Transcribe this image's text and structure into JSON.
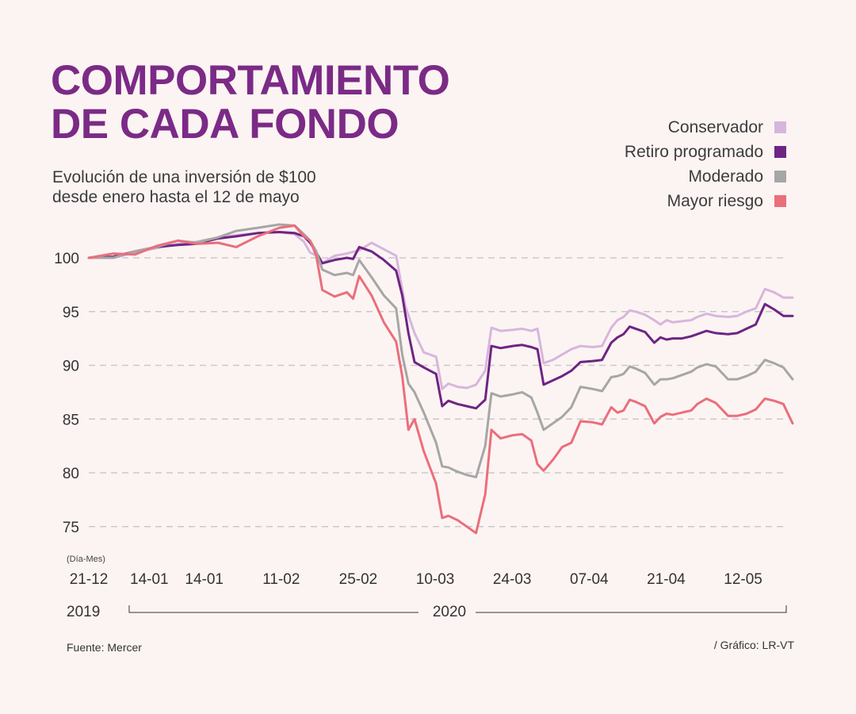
{
  "title": {
    "line1": "COMPORTAMIENTO",
    "line2": "DE CADA FONDO"
  },
  "subtitle": {
    "line1": "Evolución de una inversión de $100",
    "line2": "desde enero hasta el 12 de mayo"
  },
  "legend": [
    {
      "name": "Conservador",
      "color": "#d7b6dd"
    },
    {
      "name": "Retiro programado",
      "color": "#6f2483"
    },
    {
      "name": "Moderado",
      "color": "#a6a6a6"
    },
    {
      "name": "Mayor riesgo",
      "color": "#eb6e7b"
    }
  ],
  "source": "Fuente: Mercer",
  "credit": "/ Gráfico: LR-VT",
  "chart_data": {
    "type": "line",
    "title": "COMPORTAMIENTO DE CADA FONDO",
    "xlabel": "(Día-Mes)",
    "ylabel": "",
    "ylim": [
      74,
      104
    ],
    "yticks": [
      75,
      80,
      85,
      90,
      95,
      100
    ],
    "grid": "horizontal dashed",
    "legend_position": "top-right",
    "x_tick_labels": [
      "21-12",
      "14-01",
      "14-01",
      "11-02",
      "25-02",
      "10-03",
      "24-03",
      "07-04",
      "21-04",
      "12-05"
    ],
    "x_tick_index": [
      0,
      11,
      21,
      35,
      49,
      63,
      77,
      91,
      105,
      119
    ],
    "years": [
      "2019",
      "2020"
    ],
    "x_count": 129,
    "series": [
      {
        "name": "Conservador",
        "color": "#d7b6dd",
        "points": [
          [
            0,
            100
          ],
          [
            8,
            100
          ],
          [
            15,
            100.5
          ],
          [
            22,
            100.9
          ],
          [
            29,
            101.3
          ],
          [
            35,
            101.5
          ],
          [
            42,
            101.9
          ],
          [
            48,
            102.1
          ],
          [
            55,
            102.3
          ],
          [
            62,
            102.4
          ],
          [
            67,
            102.2
          ],
          [
            70,
            101.5
          ],
          [
            72,
            100.5
          ],
          [
            74,
            100.2
          ],
          [
            76,
            99.5
          ],
          [
            80,
            100.2
          ],
          [
            84,
            100.4
          ],
          [
            88,
            100.7
          ],
          [
            92,
            101.4
          ],
          [
            96,
            100.8
          ],
          [
            100,
            100.2
          ],
          [
            103,
            95.5
          ],
          [
            106,
            93
          ],
          [
            109,
            91.2
          ],
          [
            113,
            90.8
          ],
          [
            115,
            87.8
          ],
          [
            117,
            88.3
          ],
          [
            120,
            88
          ],
          [
            123,
            87.9
          ],
          [
            126,
            88.2
          ],
          [
            129,
            89.5
          ],
          [
            131,
            93.5
          ],
          [
            134,
            93.2
          ],
          [
            138,
            93.3
          ],
          [
            141,
            93.4
          ],
          [
            144,
            93.2
          ],
          [
            146,
            93.4
          ],
          [
            148,
            90.2
          ],
          [
            151,
            90.5
          ],
          [
            154,
            91
          ],
          [
            157,
            91.5
          ],
          [
            160,
            91.8
          ],
          [
            164,
            91.7
          ],
          [
            167,
            91.8
          ],
          [
            170,
            93.5
          ],
          [
            172,
            94.2
          ],
          [
            174,
            94.5
          ],
          [
            176,
            95.1
          ],
          [
            178,
            95
          ],
          [
            181,
            94.7
          ],
          [
            184,
            94.2
          ],
          [
            186,
            93.8
          ],
          [
            188,
            94.2
          ],
          [
            190,
            94
          ],
          [
            193,
            94.1
          ],
          [
            196,
            94.2
          ],
          [
            198,
            94.5
          ],
          [
            201,
            94.8
          ],
          [
            204,
            94.6
          ],
          [
            208,
            94.5
          ],
          [
            211,
            94.6
          ],
          [
            214,
            95
          ],
          [
            217,
            95.3
          ],
          [
            220,
            97.1
          ],
          [
            223,
            96.8
          ],
          [
            226,
            96.3
          ],
          [
            229,
            96.3
          ]
        ]
      },
      {
        "name": "Retiro programado",
        "color": "#6f2483",
        "points": [
          [
            0,
            100
          ],
          [
            8,
            100.1
          ],
          [
            15,
            100.6
          ],
          [
            22,
            101
          ],
          [
            29,
            101.2
          ],
          [
            35,
            101.3
          ],
          [
            42,
            101.8
          ],
          [
            48,
            102
          ],
          [
            55,
            102.3
          ],
          [
            62,
            102.4
          ],
          [
            67,
            102.3
          ],
          [
            70,
            102
          ],
          [
            72,
            101.4
          ],
          [
            74,
            100.5
          ],
          [
            76,
            99.5
          ],
          [
            80,
            99.8
          ],
          [
            84,
            100
          ],
          [
            86,
            99.9
          ],
          [
            88,
            101
          ],
          [
            92,
            100.6
          ],
          [
            96,
            99.8
          ],
          [
            100,
            98.8
          ],
          [
            102,
            96.5
          ],
          [
            104,
            93
          ],
          [
            106,
            90.3
          ],
          [
            109,
            89.8
          ],
          [
            113,
            89.2
          ],
          [
            115,
            86.2
          ],
          [
            117,
            86.7
          ],
          [
            120,
            86.4
          ],
          [
            123,
            86.2
          ],
          [
            126,
            86
          ],
          [
            129,
            86.8
          ],
          [
            131,
            91.8
          ],
          [
            134,
            91.6
          ],
          [
            138,
            91.8
          ],
          [
            141,
            91.9
          ],
          [
            144,
            91.7
          ],
          [
            146,
            91.5
          ],
          [
            148,
            88.2
          ],
          [
            151,
            88.6
          ],
          [
            154,
            89
          ],
          [
            157,
            89.5
          ],
          [
            160,
            90.3
          ],
          [
            164,
            90.4
          ],
          [
            167,
            90.5
          ],
          [
            170,
            92.1
          ],
          [
            172,
            92.6
          ],
          [
            174,
            92.9
          ],
          [
            176,
            93.6
          ],
          [
            178,
            93.4
          ],
          [
            181,
            93.1
          ],
          [
            184,
            92.1
          ],
          [
            186,
            92.6
          ],
          [
            188,
            92.4
          ],
          [
            190,
            92.5
          ],
          [
            193,
            92.5
          ],
          [
            196,
            92.7
          ],
          [
            198,
            92.9
          ],
          [
            201,
            93.2
          ],
          [
            204,
            93
          ],
          [
            208,
            92.9
          ],
          [
            211,
            93
          ],
          [
            214,
            93.4
          ],
          [
            217,
            93.8
          ],
          [
            220,
            95.7
          ],
          [
            223,
            95.2
          ],
          [
            226,
            94.6
          ],
          [
            229,
            94.6
          ]
        ]
      },
      {
        "name": "Moderado",
        "color": "#a6a6a6",
        "points": [
          [
            0,
            100
          ],
          [
            8,
            100
          ],
          [
            15,
            100.6
          ],
          [
            22,
            101
          ],
          [
            29,
            101.6
          ],
          [
            35,
            101.4
          ],
          [
            42,
            101.9
          ],
          [
            48,
            102.5
          ],
          [
            55,
            102.8
          ],
          [
            62,
            103.1
          ],
          [
            67,
            103
          ],
          [
            70,
            102.2
          ],
          [
            72,
            101.6
          ],
          [
            74,
            100.6
          ],
          [
            76,
            98.9
          ],
          [
            80,
            98.4
          ],
          [
            84,
            98.6
          ],
          [
            86,
            98.4
          ],
          [
            88,
            99.8
          ],
          [
            92,
            98.2
          ],
          [
            96,
            96.5
          ],
          [
            100,
            95.3
          ],
          [
            102,
            91
          ],
          [
            104,
            88.3
          ],
          [
            106,
            87.5
          ],
          [
            109,
            85.6
          ],
          [
            113,
            82.8
          ],
          [
            115,
            80.6
          ],
          [
            117,
            80.5
          ],
          [
            120,
            80.1
          ],
          [
            123,
            79.8
          ],
          [
            126,
            79.6
          ],
          [
            129,
            82.5
          ],
          [
            131,
            87.4
          ],
          [
            134,
            87.1
          ],
          [
            138,
            87.3
          ],
          [
            141,
            87.5
          ],
          [
            144,
            87
          ],
          [
            146,
            85.6
          ],
          [
            148,
            84
          ],
          [
            151,
            84.6
          ],
          [
            154,
            85.2
          ],
          [
            157,
            86.1
          ],
          [
            160,
            88
          ],
          [
            164,
            87.8
          ],
          [
            167,
            87.6
          ],
          [
            170,
            88.9
          ],
          [
            172,
            89
          ],
          [
            174,
            89.2
          ],
          [
            176,
            89.9
          ],
          [
            178,
            89.7
          ],
          [
            181,
            89.3
          ],
          [
            184,
            88.2
          ],
          [
            186,
            88.7
          ],
          [
            188,
            88.7
          ],
          [
            190,
            88.8
          ],
          [
            193,
            89.1
          ],
          [
            196,
            89.4
          ],
          [
            198,
            89.8
          ],
          [
            201,
            90.1
          ],
          [
            204,
            89.9
          ],
          [
            208,
            88.7
          ],
          [
            211,
            88.7
          ],
          [
            214,
            89
          ],
          [
            217,
            89.4
          ],
          [
            220,
            90.5
          ],
          [
            223,
            90.2
          ],
          [
            226,
            89.8
          ],
          [
            229,
            88.7
          ]
        ]
      },
      {
        "name": "Mayor riesgo",
        "color": "#eb6e7b",
        "points": [
          [
            0,
            100
          ],
          [
            8,
            100.4
          ],
          [
            15,
            100.3
          ],
          [
            22,
            101.1
          ],
          [
            29,
            101.6
          ],
          [
            35,
            101.3
          ],
          [
            42,
            101.4
          ],
          [
            48,
            101
          ],
          [
            55,
            102
          ],
          [
            62,
            102.8
          ],
          [
            67,
            103
          ],
          [
            70,
            102
          ],
          [
            72,
            101.6
          ],
          [
            74,
            100.2
          ],
          [
            76,
            97
          ],
          [
            80,
            96.4
          ],
          [
            84,
            96.8
          ],
          [
            86,
            96.2
          ],
          [
            88,
            98.3
          ],
          [
            92,
            96.5
          ],
          [
            96,
            94
          ],
          [
            100,
            92.2
          ],
          [
            102,
            89
          ],
          [
            104,
            84
          ],
          [
            106,
            85
          ],
          [
            109,
            82
          ],
          [
            113,
            79
          ],
          [
            115,
            75.8
          ],
          [
            117,
            76
          ],
          [
            120,
            75.6
          ],
          [
            123,
            75
          ],
          [
            126,
            74.4
          ],
          [
            129,
            78
          ],
          [
            131,
            84
          ],
          [
            134,
            83.2
          ],
          [
            138,
            83.5
          ],
          [
            141,
            83.6
          ],
          [
            144,
            83
          ],
          [
            146,
            80.8
          ],
          [
            148,
            80.2
          ],
          [
            151,
            81.2
          ],
          [
            154,
            82.4
          ],
          [
            157,
            82.8
          ],
          [
            160,
            84.8
          ],
          [
            164,
            84.7
          ],
          [
            167,
            84.5
          ],
          [
            170,
            86.1
          ],
          [
            172,
            85.6
          ],
          [
            174,
            85.8
          ],
          [
            176,
            86.8
          ],
          [
            178,
            86.6
          ],
          [
            181,
            86.2
          ],
          [
            184,
            84.6
          ],
          [
            186,
            85.2
          ],
          [
            188,
            85.5
          ],
          [
            190,
            85.4
          ],
          [
            193,
            85.6
          ],
          [
            196,
            85.8
          ],
          [
            198,
            86.4
          ],
          [
            201,
            86.9
          ],
          [
            204,
            86.5
          ],
          [
            208,
            85.3
          ],
          [
            211,
            85.3
          ],
          [
            214,
            85.5
          ],
          [
            217,
            85.9
          ],
          [
            220,
            86.9
          ],
          [
            223,
            86.7
          ],
          [
            226,
            86.4
          ],
          [
            229,
            84.6
          ]
        ]
      }
    ]
  }
}
